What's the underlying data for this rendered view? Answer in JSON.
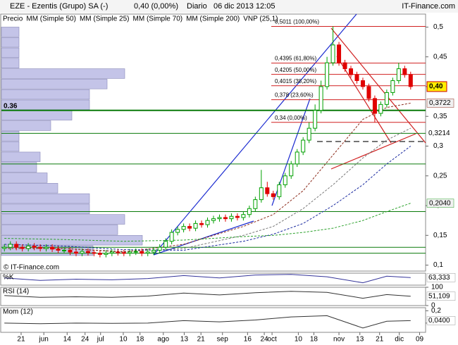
{
  "header": {
    "title": "EZE - Ezentis (Grupo) SA (-)",
    "quote": "0,40 (0,00%)",
    "period": "Diario",
    "date": "06 dic 2013 12:05",
    "source": "IT-Finance.com",
    "watermark": "© IT-Finance.com"
  },
  "chart_data": {
    "type": "candlestick",
    "price_label": "Precio",
    "xlim": [
      -0.5,
      70.5
    ],
    "ylim": [
      0.09,
      0.51
    ],
    "yticks": [
      {
        "value": 0.1,
        "label": "0,1"
      },
      {
        "value": 0.15,
        "label": "0,15"
      },
      {
        "value": 0.2,
        "label": "0,2"
      },
      {
        "value": 0.25,
        "label": "0,25"
      },
      {
        "value": 0.3,
        "label": "0,3"
      },
      {
        "value": 0.35,
        "label": "0,35"
      },
      {
        "value": 0.4,
        "label": "0,4"
      },
      {
        "value": 0.45,
        "label": "0,45"
      },
      {
        "value": 0.5,
        "label": "0,5"
      }
    ],
    "xticks": [
      {
        "value": 2.8,
        "label": "21"
      },
      {
        "value": 6.6,
        "label": "jun"
      },
      {
        "value": 10.5,
        "label": "14"
      },
      {
        "value": 13.5,
        "label": "24"
      },
      {
        "value": 16.1,
        "label": "jul"
      },
      {
        "value": 19.9,
        "label": "10"
      },
      {
        "value": 22.7,
        "label": "18"
      },
      {
        "value": 26.6,
        "label": "ago"
      },
      {
        "value": 30.1,
        "label": "13"
      },
      {
        "value": 32.9,
        "label": "21"
      },
      {
        "value": 36.5,
        "label": "sep"
      },
      {
        "value": 40.7,
        "label": "16"
      },
      {
        "value": 43.5,
        "label": "24"
      },
      {
        "value": 44.8,
        "label": "oct"
      },
      {
        "value": 49.2,
        "label": "10"
      },
      {
        "value": 51.8,
        "label": "18"
      },
      {
        "value": 56,
        "label": "nov"
      },
      {
        "value": 59.5,
        "label": "13"
      },
      {
        "value": 62.8,
        "label": "21"
      },
      {
        "value": 66.1,
        "label": "dic"
      },
      {
        "value": 69.5,
        "label": "09"
      }
    ],
    "up_color": "#00a000",
    "down_color": "#e00000",
    "open": [
      0.128,
      0.13,
      0.135,
      0.13,
      0.128,
      0.132,
      0.13,
      0.128,
      0.13,
      0.127,
      0.125,
      0.125,
      0.122,
      0.12,
      0.123,
      0.121,
      0.12,
      0.118,
      0.12,
      0.122,
      0.121,
      0.12,
      0.122,
      0.123,
      0.12,
      0.122,
      0.125,
      0.13,
      0.14,
      0.155,
      0.16,
      0.165,
      0.162,
      0.17,
      0.168,
      0.175,
      0.178,
      0.18,
      0.178,
      0.182,
      0.18,
      0.185,
      0.195,
      0.21,
      0.23,
      0.22,
      0.215,
      0.235,
      0.25,
      0.27,
      0.29,
      0.31,
      0.33,
      0.36,
      0.4,
      0.44,
      0.47,
      0.44,
      0.43,
      0.42,
      0.41,
      0.4,
      0.38,
      0.355,
      0.37,
      0.39,
      0.41,
      0.43,
      0.42
    ],
    "high": [
      0.135,
      0.14,
      0.14,
      0.135,
      0.137,
      0.137,
      0.135,
      0.135,
      0.135,
      0.132,
      0.13,
      0.13,
      0.127,
      0.128,
      0.128,
      0.126,
      0.125,
      0.125,
      0.127,
      0.127,
      0.126,
      0.127,
      0.128,
      0.128,
      0.127,
      0.13,
      0.135,
      0.145,
      0.16,
      0.165,
      0.17,
      0.17,
      0.175,
      0.175,
      0.18,
      0.183,
      0.185,
      0.185,
      0.187,
      0.187,
      0.19,
      0.2,
      0.215,
      0.26,
      0.24,
      0.225,
      0.24,
      0.255,
      0.275,
      0.295,
      0.315,
      0.34,
      0.37,
      0.41,
      0.45,
      0.501,
      0.475,
      0.445,
      0.435,
      0.425,
      0.415,
      0.405,
      0.385,
      0.375,
      0.395,
      0.415,
      0.44,
      0.435,
      0.425
    ],
    "low": [
      0.123,
      0.125,
      0.125,
      0.123,
      0.123,
      0.125,
      0.123,
      0.123,
      0.122,
      0.12,
      0.12,
      0.117,
      0.115,
      0.115,
      0.116,
      0.115,
      0.113,
      0.113,
      0.115,
      0.116,
      0.115,
      0.115,
      0.117,
      0.115,
      0.115,
      0.117,
      0.12,
      0.125,
      0.135,
      0.15,
      0.155,
      0.157,
      0.157,
      0.163,
      0.163,
      0.17,
      0.173,
      0.173,
      0.173,
      0.175,
      0.175,
      0.18,
      0.19,
      0.205,
      0.215,
      0.21,
      0.21,
      0.23,
      0.245,
      0.265,
      0.285,
      0.305,
      0.325,
      0.355,
      0.395,
      0.435,
      0.435,
      0.425,
      0.415,
      0.405,
      0.395,
      0.375,
      0.34,
      0.35,
      0.365,
      0.385,
      0.405,
      0.415,
      0.395
    ],
    "close": [
      0.13,
      0.135,
      0.13,
      0.128,
      0.132,
      0.13,
      0.128,
      0.13,
      0.127,
      0.125,
      0.125,
      0.122,
      0.12,
      0.123,
      0.121,
      0.12,
      0.118,
      0.12,
      0.122,
      0.121,
      0.12,
      0.122,
      0.123,
      0.12,
      0.122,
      0.125,
      0.13,
      0.14,
      0.155,
      0.16,
      0.165,
      0.162,
      0.17,
      0.168,
      0.175,
      0.178,
      0.18,
      0.178,
      0.182,
      0.18,
      0.185,
      0.195,
      0.21,
      0.23,
      0.22,
      0.215,
      0.235,
      0.25,
      0.27,
      0.29,
      0.31,
      0.33,
      0.36,
      0.4,
      0.44,
      0.47,
      0.44,
      0.43,
      0.42,
      0.41,
      0.4,
      0.38,
      0.355,
      0.37,
      0.39,
      0.41,
      0.43,
      0.42,
      0.4
    ],
    "price_marker": {
      "value": 0.4,
      "label": "0,40"
    },
    "series": [
      {
        "name": "MM (Simple 50)",
        "color": "#777777",
        "x": [
          0,
          10,
          20,
          30,
          40,
          45,
          50,
          55,
          60,
          64,
          68
        ],
        "values": [
          0.13,
          0.128,
          0.123,
          0.128,
          0.15,
          0.165,
          0.195,
          0.235,
          0.28,
          0.31,
          0.33
        ],
        "value_labels": [
          null,
          null,
          null,
          null,
          null,
          null,
          null,
          null,
          null,
          null,
          null
        ]
      },
      {
        "name": "MM (Simple 25)",
        "color": "#8b2a1a",
        "x": [
          0,
          10,
          20,
          30,
          40,
          45,
          50,
          55,
          60,
          64,
          68
        ],
        "values": [
          0.128,
          0.128,
          0.122,
          0.135,
          0.165,
          0.185,
          0.225,
          0.285,
          0.345,
          0.365,
          0.3722
        ],
        "value_labels": [
          null,
          null,
          null,
          null,
          null,
          null,
          null,
          null,
          null,
          null,
          "0,3722"
        ]
      },
      {
        "name": "MM (Simple 70)",
        "color": "#1a2aa0",
        "x": [
          0,
          10,
          20,
          30,
          40,
          45,
          50,
          55,
          60,
          64,
          68
        ],
        "values": [
          0.135,
          0.132,
          0.126,
          0.125,
          0.14,
          0.152,
          0.17,
          0.2,
          0.235,
          0.27,
          0.3
        ],
        "value_labels": [
          null,
          null,
          null,
          null,
          null,
          null,
          null,
          null,
          null,
          null,
          null
        ]
      },
      {
        "name": "MM (Simple 200)",
        "color": "#2aa02a",
        "x": [
          0,
          10,
          20,
          30,
          40,
          45,
          50,
          55,
          60,
          64,
          68
        ],
        "values": [
          0.145,
          0.143,
          0.14,
          0.142,
          0.148,
          0.15,
          0.155,
          0.162,
          0.175,
          0.19,
          0.204
        ],
        "value_labels": [
          null,
          null,
          null,
          null,
          null,
          null,
          null,
          null,
          null,
          null,
          "0,2040"
        ]
      }
    ],
    "volume_profile": {
      "name": "VNP (25,1)",
      "color": "#c4c4e8",
      "xlim": [
        0,
        230
      ],
      "bins": [
        0.115,
        0.1325,
        0.15,
        0.1675,
        0.185,
        0.2025,
        0.22,
        0.2375,
        0.255,
        0.2725,
        0.29,
        0.3075,
        0.325,
        0.3425,
        0.36,
        0.3775,
        0.395,
        0.4125,
        0.43,
        0.4475,
        0.465,
        0.4825,
        0.5
      ],
      "values": [
        130,
        200,
        165,
        175,
        125,
        125,
        80,
        65,
        50,
        55,
        25,
        25,
        70,
        100,
        125,
        125,
        150,
        175,
        25,
        25,
        25,
        25
      ]
    },
    "levels": {
      "color": "#0a7a0a",
      "lines": [
        {
          "value": 0.36,
          "label": "0.36",
          "label_side": "left"
        },
        {
          "value": 0.3214,
          "label": "0,3214",
          "label_side": "right"
        },
        0.27,
        0.19,
        0.13,
        0.12
      ]
    },
    "fibonacci": {
      "color": "#d02020",
      "levels": [
        {
          "value": 0.5011,
          "label": "0,5011 (100,00%)"
        },
        {
          "value": 0.4395,
          "label": "0,4395 (61,80%)"
        },
        {
          "value": 0.4205,
          "label": "0,4205 (50,00%)"
        },
        {
          "value": 0.4015,
          "label": "0,4015 (38,20%)"
        },
        {
          "value": 0.378,
          "label": "0,378 (23,60%)"
        },
        {
          "value": 0.34,
          "label": "0,34 (0,00%)"
        }
      ]
    },
    "indicators": [
      {
        "name": "%K",
        "color": "#333399",
        "ylim": [
          0,
          100
        ],
        "x": [
          0,
          6,
          12,
          18,
          24,
          30,
          36,
          42,
          48,
          54,
          60,
          64,
          68
        ],
        "values": [
          60,
          40,
          50,
          45,
          55,
          80,
          60,
          85,
          90,
          70,
          20,
          75,
          63.333
        ],
        "value_labels": [
          null,
          null,
          null,
          null,
          null,
          null,
          null,
          null,
          null,
          null,
          null,
          null,
          "63,333"
        ]
      },
      {
        "name": "RSI (14)",
        "color": "#333333",
        "ylim": [
          0,
          100
        ],
        "yticks": [
          100,
          0
        ],
        "x": [
          0,
          6,
          12,
          18,
          24,
          30,
          36,
          42,
          48,
          54,
          60,
          64,
          68
        ],
        "values": [
          55,
          45,
          48,
          45,
          52,
          68,
          58,
          70,
          78,
          72,
          40,
          60,
          51.109
        ],
        "value_labels": [
          null,
          null,
          null,
          null,
          null,
          null,
          null,
          null,
          null,
          null,
          null,
          null,
          "51,109"
        ]
      },
      {
        "name": "Mom (12)",
        "color": "#333333",
        "ylim": [
          -0.15,
          0.25
        ],
        "yticks": [
          {
            "value": 0.2,
            "label": "0,2"
          },
          0
        ],
        "x": [
          0,
          6,
          12,
          18,
          24,
          30,
          36,
          42,
          48,
          54,
          60,
          64,
          68
        ],
        "values": [
          0,
          -0.01,
          0,
          -0.005,
          0,
          0.04,
          0.02,
          0.05,
          0.1,
          0.12,
          -0.08,
          0.03,
          0.04
        ],
        "value_labels": [
          null,
          null,
          null,
          null,
          null,
          null,
          null,
          null,
          null,
          null,
          null,
          null,
          "0,0400"
        ]
      }
    ]
  }
}
